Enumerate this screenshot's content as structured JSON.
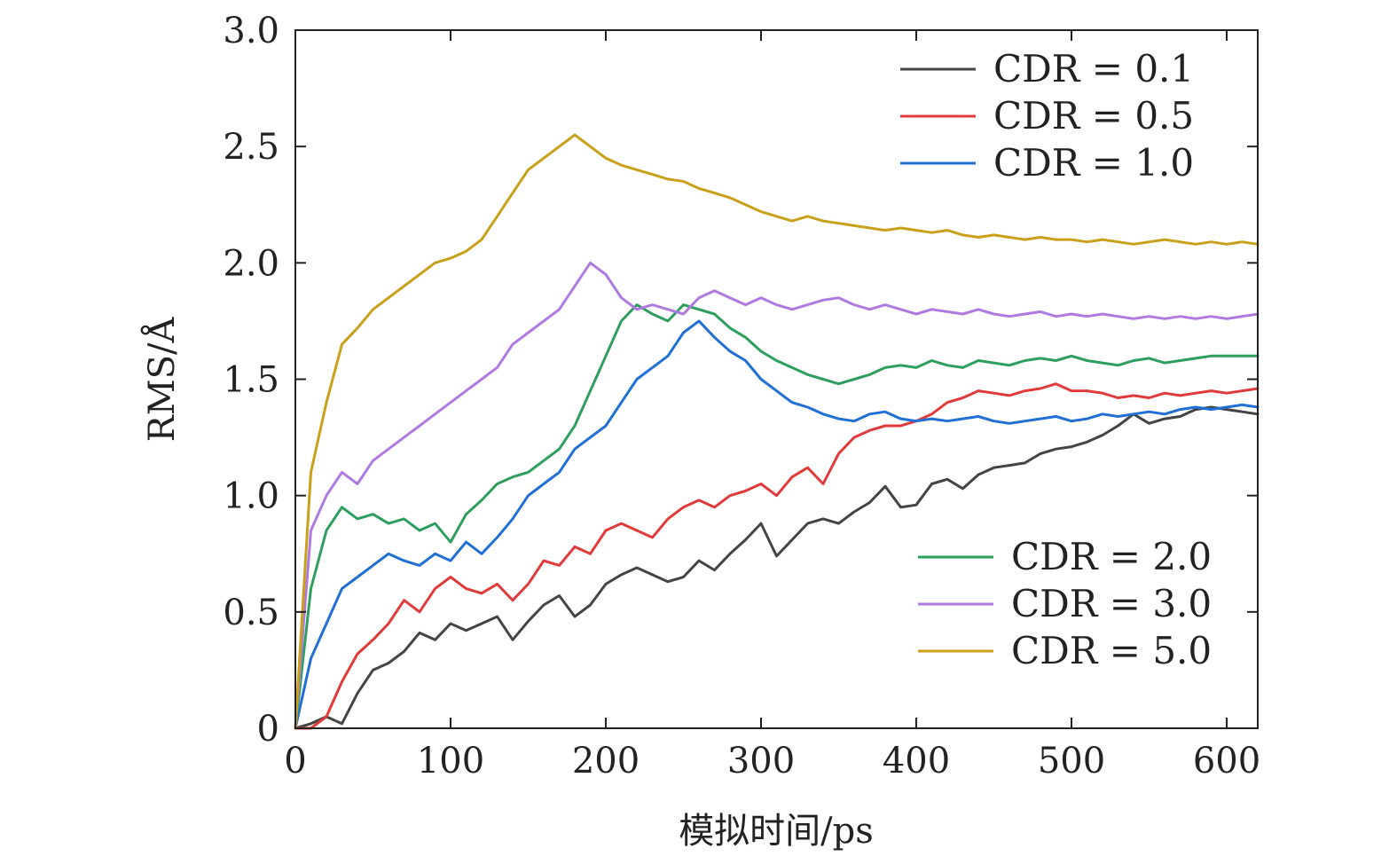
{
  "chart_data": {
    "type": "line",
    "xlabel": "模拟时间/ps",
    "ylabel": "RMS/Å",
    "xlim": [
      0,
      620
    ],
    "ylim": [
      0,
      3.0
    ],
    "xticks": [
      0,
      100,
      200,
      300,
      400,
      500,
      600
    ],
    "xtick_labels": [
      "0",
      "100",
      "200",
      "300",
      "400",
      "500",
      "600"
    ],
    "yticks": [
      0,
      0.5,
      1.0,
      1.5,
      2.0,
      2.5,
      3.0
    ],
    "ytick_labels": [
      "0",
      "0.5",
      "1.0",
      "1.5",
      "2.0",
      "2.5",
      "3.0"
    ],
    "grid": false,
    "legend_groups": [
      {
        "placement": "top-right",
        "series": [
          "CDR = 0.1",
          "CDR = 0.5",
          "CDR = 1.0"
        ]
      },
      {
        "placement": "bottom-right",
        "series": [
          "CDR = 2.0",
          "CDR = 3.0",
          "CDR = 5.0"
        ]
      }
    ],
    "series": [
      {
        "name": "CDR = 0.1",
        "color": "#444444",
        "x": [
          0,
          10,
          20,
          30,
          40,
          50,
          60,
          70,
          80,
          90,
          100,
          110,
          120,
          130,
          140,
          150,
          160,
          170,
          180,
          190,
          200,
          210,
          220,
          230,
          240,
          250,
          260,
          270,
          280,
          290,
          300,
          310,
          320,
          330,
          340,
          350,
          360,
          370,
          380,
          390,
          400,
          410,
          420,
          430,
          440,
          450,
          460,
          470,
          480,
          490,
          500,
          510,
          520,
          530,
          540,
          550,
          560,
          570,
          580,
          590,
          600,
          610,
          620
        ],
        "values": [
          0.0,
          0.02,
          0.05,
          0.02,
          0.15,
          0.25,
          0.28,
          0.33,
          0.41,
          0.38,
          0.45,
          0.42,
          0.45,
          0.48,
          0.38,
          0.46,
          0.53,
          0.57,
          0.48,
          0.53,
          0.62,
          0.66,
          0.69,
          0.66,
          0.63,
          0.65,
          0.72,
          0.68,
          0.75,
          0.81,
          0.88,
          0.74,
          0.81,
          0.88,
          0.9,
          0.88,
          0.93,
          0.97,
          1.04,
          0.95,
          0.96,
          1.05,
          1.07,
          1.03,
          1.09,
          1.12,
          1.13,
          1.14,
          1.18,
          1.2,
          1.21,
          1.23,
          1.26,
          1.3,
          1.35,
          1.31,
          1.33,
          1.34,
          1.37,
          1.38,
          1.37,
          1.36,
          1.35
        ]
      },
      {
        "name": "CDR = 0.5",
        "color": "#e03a3a",
        "x": [
          0,
          10,
          20,
          30,
          40,
          50,
          60,
          70,
          80,
          90,
          100,
          110,
          120,
          130,
          140,
          150,
          160,
          170,
          180,
          190,
          200,
          210,
          220,
          230,
          240,
          250,
          260,
          270,
          280,
          290,
          300,
          310,
          320,
          330,
          340,
          350,
          360,
          370,
          380,
          390,
          400,
          410,
          420,
          430,
          440,
          450,
          460,
          470,
          480,
          490,
          500,
          510,
          520,
          530,
          540,
          550,
          560,
          570,
          580,
          590,
          600,
          610,
          620
        ],
        "values": [
          0.0,
          0.0,
          0.05,
          0.2,
          0.32,
          0.38,
          0.45,
          0.55,
          0.5,
          0.6,
          0.65,
          0.6,
          0.58,
          0.62,
          0.55,
          0.62,
          0.72,
          0.7,
          0.78,
          0.75,
          0.85,
          0.88,
          0.85,
          0.82,
          0.9,
          0.95,
          0.98,
          0.95,
          1.0,
          1.02,
          1.05,
          1.0,
          1.08,
          1.12,
          1.05,
          1.18,
          1.25,
          1.28,
          1.3,
          1.3,
          1.32,
          1.35,
          1.4,
          1.42,
          1.45,
          1.44,
          1.43,
          1.45,
          1.46,
          1.48,
          1.45,
          1.45,
          1.44,
          1.42,
          1.43,
          1.42,
          1.44,
          1.43,
          1.44,
          1.45,
          1.44,
          1.45,
          1.46
        ]
      },
      {
        "name": "CDR = 1.0",
        "color": "#1f6fd4",
        "x": [
          0,
          10,
          20,
          30,
          40,
          50,
          60,
          70,
          80,
          90,
          100,
          110,
          120,
          130,
          140,
          150,
          160,
          170,
          180,
          190,
          200,
          210,
          220,
          230,
          240,
          250,
          260,
          270,
          280,
          290,
          300,
          310,
          320,
          330,
          340,
          350,
          360,
          370,
          380,
          390,
          400,
          410,
          420,
          430,
          440,
          450,
          460,
          470,
          480,
          490,
          500,
          510,
          520,
          530,
          540,
          550,
          560,
          570,
          580,
          590,
          600,
          610,
          620
        ],
        "values": [
          0.0,
          0.3,
          0.45,
          0.6,
          0.65,
          0.7,
          0.75,
          0.72,
          0.7,
          0.75,
          0.72,
          0.8,
          0.75,
          0.82,
          0.9,
          1.0,
          1.05,
          1.1,
          1.2,
          1.25,
          1.3,
          1.4,
          1.5,
          1.55,
          1.6,
          1.7,
          1.75,
          1.68,
          1.62,
          1.58,
          1.5,
          1.45,
          1.4,
          1.38,
          1.35,
          1.33,
          1.32,
          1.35,
          1.36,
          1.33,
          1.32,
          1.33,
          1.32,
          1.33,
          1.34,
          1.32,
          1.31,
          1.32,
          1.33,
          1.34,
          1.32,
          1.33,
          1.35,
          1.34,
          1.35,
          1.36,
          1.35,
          1.37,
          1.38,
          1.37,
          1.38,
          1.39,
          1.38
        ]
      },
      {
        "name": "CDR = 2.0",
        "color": "#2e9e5e",
        "x": [
          0,
          10,
          20,
          30,
          40,
          50,
          60,
          70,
          80,
          90,
          100,
          110,
          120,
          130,
          140,
          150,
          160,
          170,
          180,
          190,
          200,
          210,
          220,
          230,
          240,
          250,
          260,
          270,
          280,
          290,
          300,
          310,
          320,
          330,
          340,
          350,
          360,
          370,
          380,
          390,
          400,
          410,
          420,
          430,
          440,
          450,
          460,
          470,
          480,
          490,
          500,
          510,
          520,
          530,
          540,
          550,
          560,
          570,
          580,
          590,
          600,
          610,
          620
        ],
        "values": [
          0.0,
          0.6,
          0.85,
          0.95,
          0.9,
          0.92,
          0.88,
          0.9,
          0.85,
          0.88,
          0.8,
          0.92,
          0.98,
          1.05,
          1.08,
          1.1,
          1.15,
          1.2,
          1.3,
          1.45,
          1.6,
          1.75,
          1.82,
          1.78,
          1.75,
          1.82,
          1.8,
          1.78,
          1.72,
          1.68,
          1.62,
          1.58,
          1.55,
          1.52,
          1.5,
          1.48,
          1.5,
          1.52,
          1.55,
          1.56,
          1.55,
          1.58,
          1.56,
          1.55,
          1.58,
          1.57,
          1.56,
          1.58,
          1.59,
          1.58,
          1.6,
          1.58,
          1.57,
          1.56,
          1.58,
          1.59,
          1.57,
          1.58,
          1.59,
          1.6,
          1.6,
          1.6,
          1.6
        ]
      },
      {
        "name": "CDR = 3.0",
        "color": "#ae7ae0",
        "x": [
          0,
          10,
          20,
          30,
          40,
          50,
          60,
          70,
          80,
          90,
          100,
          110,
          120,
          130,
          140,
          150,
          160,
          170,
          180,
          190,
          200,
          210,
          220,
          230,
          240,
          250,
          260,
          270,
          280,
          290,
          300,
          310,
          320,
          330,
          340,
          350,
          360,
          370,
          380,
          390,
          400,
          410,
          420,
          430,
          440,
          450,
          460,
          470,
          480,
          490,
          500,
          510,
          520,
          530,
          540,
          550,
          560,
          570,
          580,
          590,
          600,
          610,
          620
        ],
        "values": [
          0.0,
          0.85,
          1.0,
          1.1,
          1.05,
          1.15,
          1.2,
          1.25,
          1.3,
          1.35,
          1.4,
          1.45,
          1.5,
          1.55,
          1.65,
          1.7,
          1.75,
          1.8,
          1.9,
          2.0,
          1.95,
          1.85,
          1.8,
          1.82,
          1.8,
          1.78,
          1.85,
          1.88,
          1.85,
          1.82,
          1.85,
          1.82,
          1.8,
          1.82,
          1.84,
          1.85,
          1.82,
          1.8,
          1.82,
          1.8,
          1.78,
          1.8,
          1.79,
          1.78,
          1.8,
          1.78,
          1.77,
          1.78,
          1.79,
          1.77,
          1.78,
          1.77,
          1.78,
          1.77,
          1.76,
          1.77,
          1.76,
          1.77,
          1.76,
          1.77,
          1.76,
          1.77,
          1.78
        ]
      },
      {
        "name": "CDR = 5.0",
        "color": "#c9a01a",
        "x": [
          0,
          10,
          20,
          30,
          40,
          50,
          60,
          70,
          80,
          90,
          100,
          110,
          120,
          130,
          140,
          150,
          160,
          170,
          180,
          190,
          200,
          210,
          220,
          230,
          240,
          250,
          260,
          270,
          280,
          290,
          300,
          310,
          320,
          330,
          340,
          350,
          360,
          370,
          380,
          390,
          400,
          410,
          420,
          430,
          440,
          450,
          460,
          470,
          480,
          490,
          500,
          510,
          520,
          530,
          540,
          550,
          560,
          570,
          580,
          590,
          600,
          610,
          620
        ],
        "values": [
          0.0,
          1.1,
          1.4,
          1.65,
          1.72,
          1.8,
          1.85,
          1.9,
          1.95,
          2.0,
          2.02,
          2.05,
          2.1,
          2.2,
          2.3,
          2.4,
          2.45,
          2.5,
          2.55,
          2.5,
          2.45,
          2.42,
          2.4,
          2.38,
          2.36,
          2.35,
          2.32,
          2.3,
          2.28,
          2.25,
          2.22,
          2.2,
          2.18,
          2.2,
          2.18,
          2.17,
          2.16,
          2.15,
          2.14,
          2.15,
          2.14,
          2.13,
          2.14,
          2.12,
          2.11,
          2.12,
          2.11,
          2.1,
          2.11,
          2.1,
          2.1,
          2.09,
          2.1,
          2.09,
          2.08,
          2.09,
          2.1,
          2.09,
          2.08,
          2.09,
          2.08,
          2.09,
          2.08
        ]
      }
    ]
  }
}
